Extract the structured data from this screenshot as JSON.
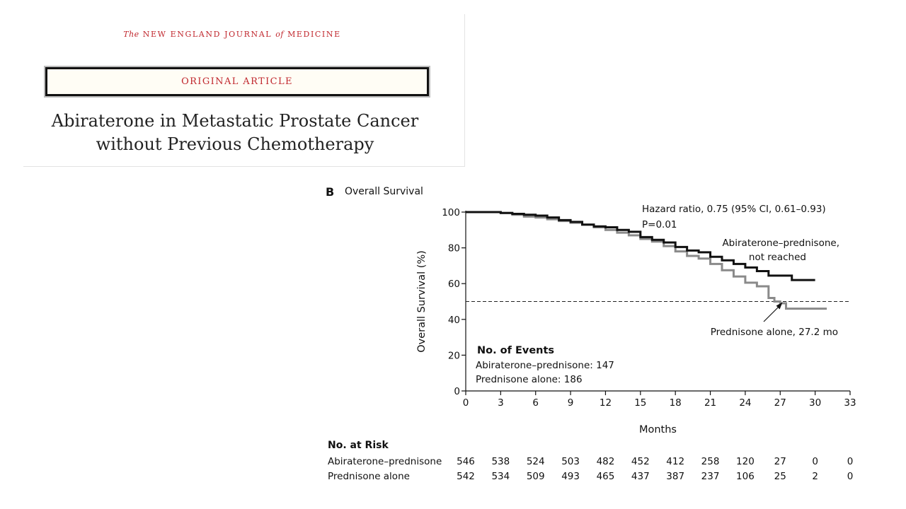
{
  "header": {
    "journal_pre": "The",
    "journal_main": "NEW ENGLAND JOURNAL",
    "journal_of": "of",
    "journal_end": "MEDICINE",
    "article_type": "ORIGINAL ARTICLE",
    "title_line1": "Abiraterone in Metastatic Prostate Cancer",
    "title_line2": "without Previous Chemotherapy"
  },
  "panel": {
    "letter": "B",
    "title": "Overall Survival"
  },
  "chart_data": {
    "type": "line",
    "title": "Overall Survival",
    "xlabel": "Months",
    "ylabel": "Overall Survival (%)",
    "xlim": [
      0,
      33
    ],
    "ylim": [
      0,
      100
    ],
    "xticks": [
      0,
      3,
      6,
      9,
      12,
      15,
      18,
      21,
      24,
      27,
      30,
      33
    ],
    "yticks": [
      0,
      20,
      40,
      60,
      80,
      100
    ],
    "grid": false,
    "reference_line": {
      "y": 50,
      "style": "dashed"
    },
    "series": [
      {
        "name": "Abiraterone–prednisone",
        "color": "#111111",
        "x": [
          0,
          2,
          3,
          4,
          5,
          6,
          7,
          8,
          9,
          10,
          11,
          12,
          13,
          14,
          15,
          16,
          17,
          18,
          19,
          20,
          21,
          22,
          23,
          24,
          25,
          26,
          27,
          28,
          29,
          30
        ],
        "y": [
          100,
          100,
          99.5,
          99,
          98.5,
          98,
          97,
          95.5,
          94.5,
          93,
          92,
          91.5,
          90,
          89,
          86,
          84.5,
          83,
          80.5,
          78.5,
          77.5,
          75,
          73,
          71,
          69,
          67,
          64.5,
          64.5,
          62,
          62,
          62
        ]
      },
      {
        "name": "Prednisone alone",
        "color": "#8a8a8a",
        "x": [
          0,
          2,
          3,
          4,
          5,
          6,
          7,
          8,
          9,
          10,
          11,
          12,
          13,
          14,
          15,
          16,
          17,
          18,
          19,
          20,
          21,
          22,
          23,
          24,
          25,
          26,
          26.5,
          27,
          27.5,
          28,
          29,
          30,
          31
        ],
        "y": [
          100,
          100,
          99.5,
          98.5,
          97.5,
          97,
          96,
          95,
          94,
          93,
          91.5,
          90,
          88.5,
          87,
          85,
          83.5,
          81,
          78,
          75.5,
          74,
          71,
          67.5,
          64,
          60.5,
          58.5,
          52,
          50,
          49,
          46,
          46,
          46,
          46,
          46
        ]
      }
    ],
    "annotations": {
      "hazard_ratio": "Hazard ratio, 0.75 (95% CI, 0.61–0.93)",
      "p_value": "P=0.01",
      "abi_label_1": "Abiraterone–prednisone,",
      "abi_label_2": "not reached",
      "pred_label": "Prednisone alone, 27.2 mo"
    },
    "median_arrow": {
      "x": 27.2,
      "y": 50
    },
    "events": {
      "title": "No. of Events",
      "abi": "Abiraterone–prednisone: 147",
      "pred": "Prednisone alone: 186"
    }
  },
  "risk_table": {
    "title": "No. at Risk",
    "rows": [
      {
        "label": "Abiraterone–prednisone",
        "values": [
          546,
          538,
          524,
          503,
          482,
          452,
          412,
          258,
          120,
          27,
          0,
          0
        ]
      },
      {
        "label": "Prednisone alone",
        "values": [
          542,
          534,
          509,
          493,
          465,
          437,
          387,
          237,
          106,
          25,
          2,
          0
        ]
      }
    ]
  }
}
